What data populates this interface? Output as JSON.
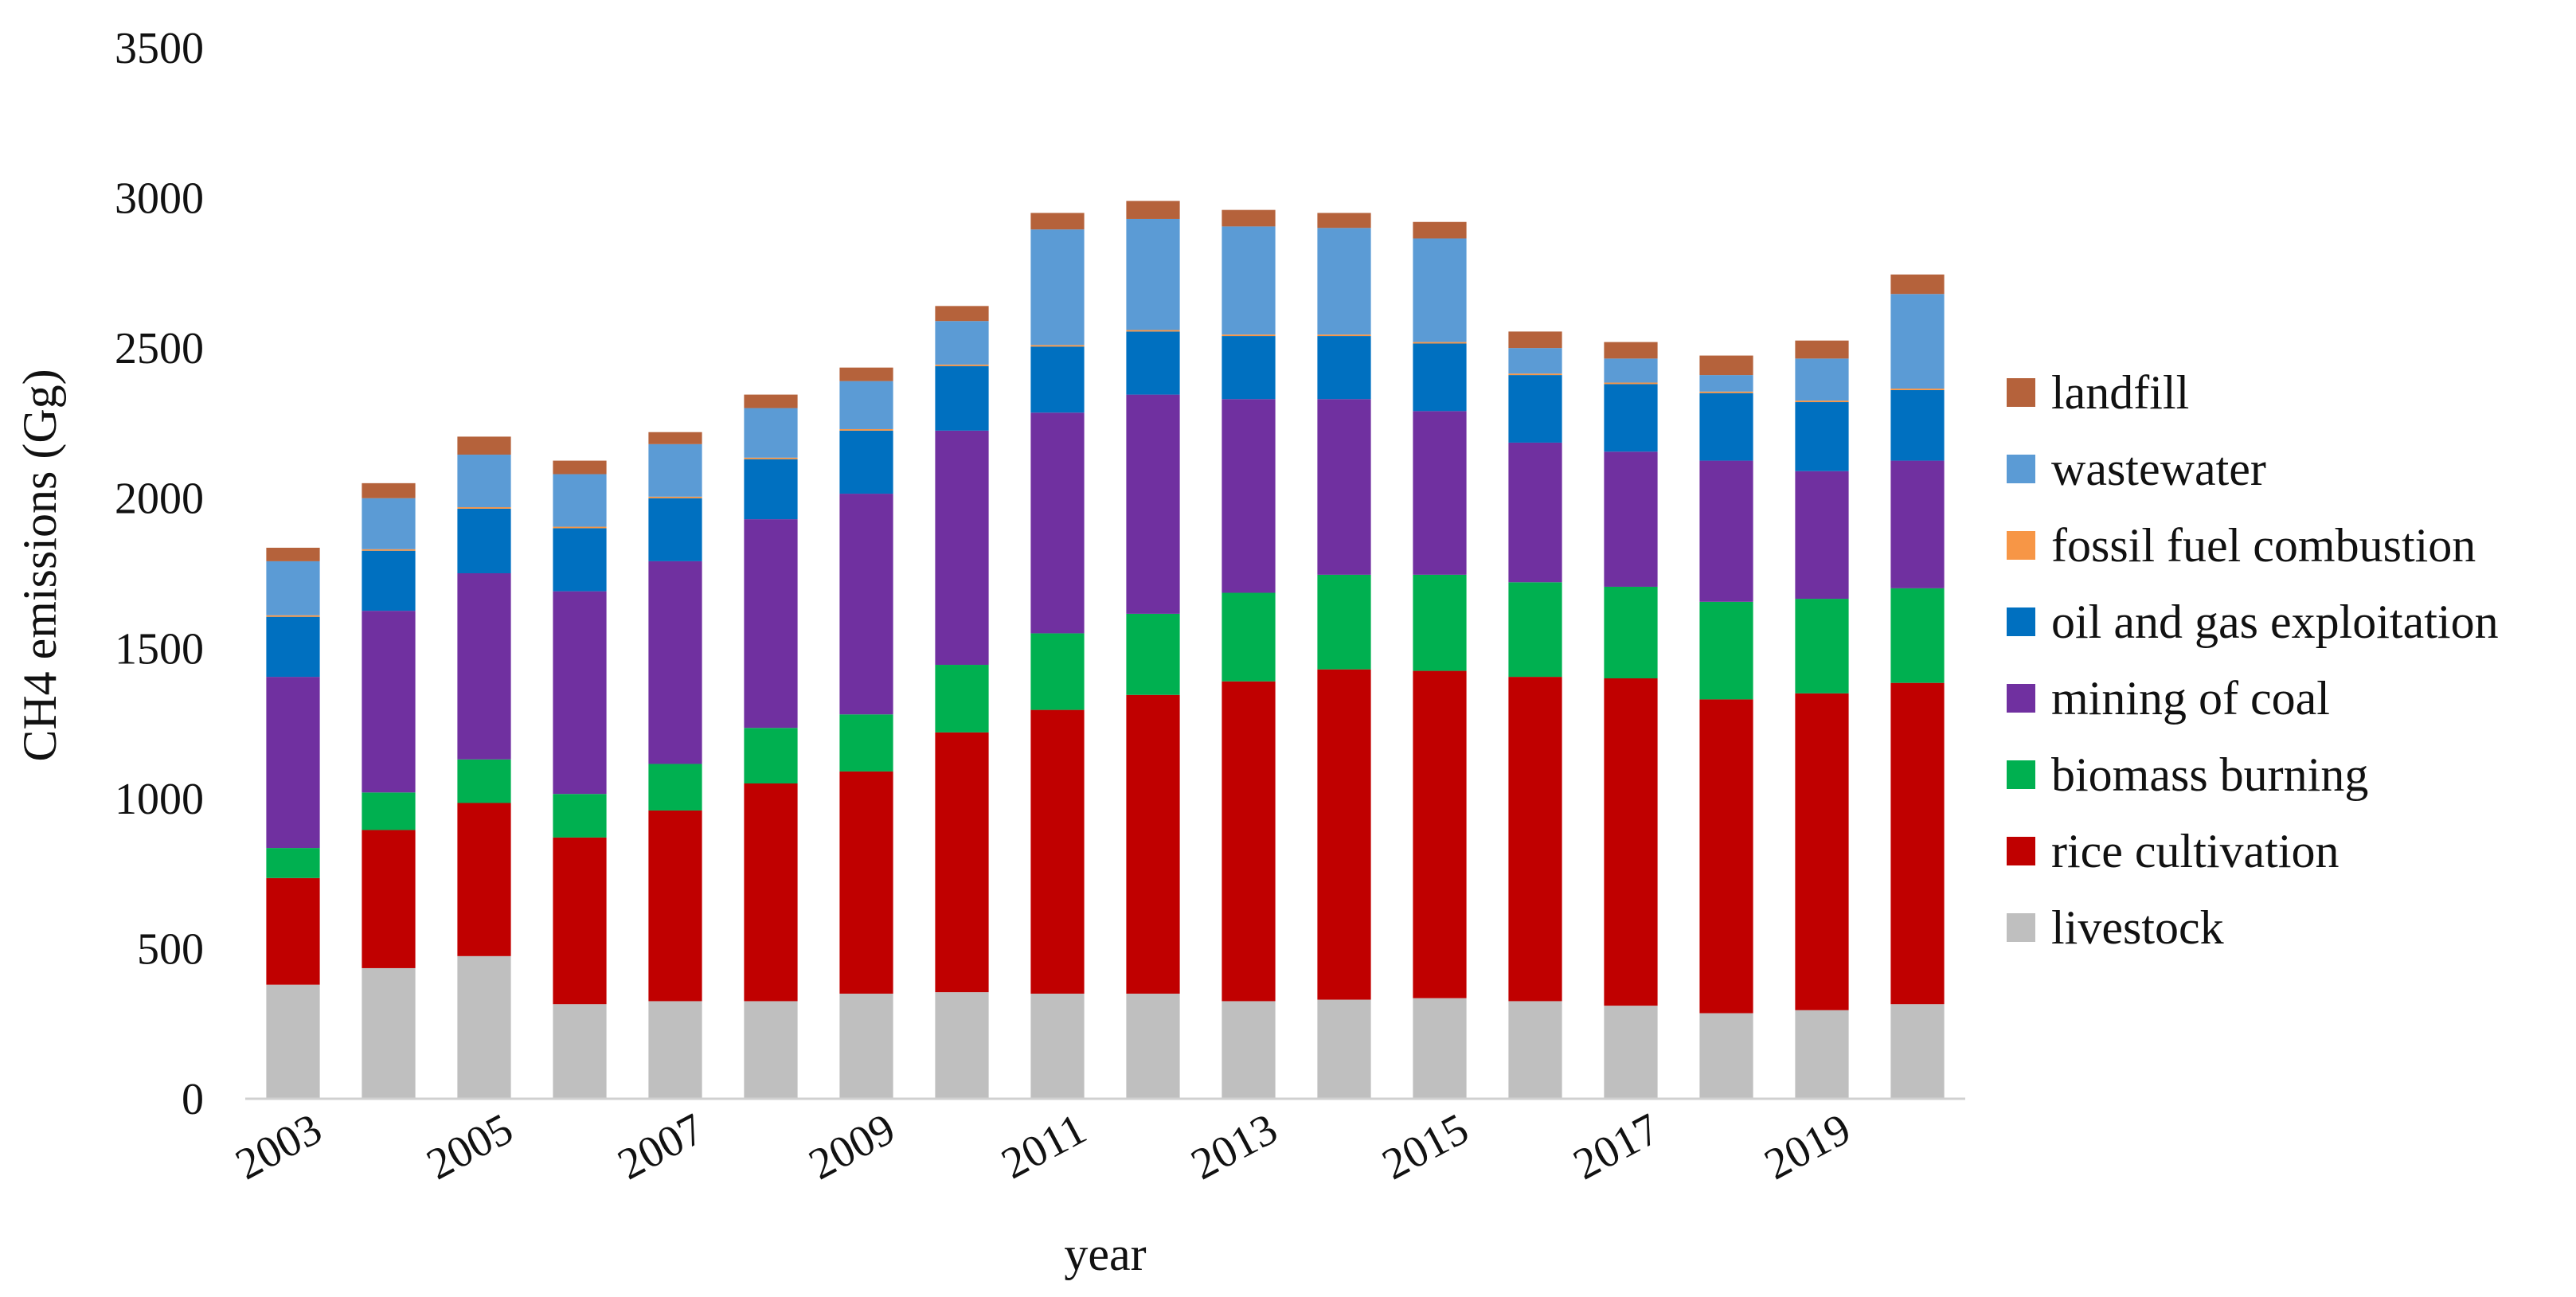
{
  "chart_data": {
    "type": "stacked-bar",
    "title": "",
    "xlabel": "year",
    "ylabel": "CH4 emissions (Gg)",
    "ylim": [
      0,
      3500
    ],
    "yticks": [
      0,
      500,
      1000,
      1500,
      2000,
      2500,
      3000,
      3500
    ],
    "grid": false,
    "legend_position": "right",
    "categories": [
      "2003",
      "2004",
      "2005",
      "2006",
      "2007",
      "2008",
      "2009",
      "2010",
      "2011",
      "2012",
      "2013",
      "2014",
      "2015",
      "2016",
      "2017",
      "2018",
      "2019",
      "2020"
    ],
    "x_tick_labels": [
      "2003",
      "",
      "2005",
      "",
      "2007",
      "",
      "2009",
      "",
      "2011",
      "",
      "2013",
      "",
      "2015",
      "",
      "2017",
      "",
      "2019",
      ""
    ],
    "series": [
      {
        "name": "livestock",
        "color": "#BFBFBF",
        "values": [
          380,
          435,
          475,
          315,
          325,
          325,
          350,
          355,
          350,
          350,
          325,
          330,
          335,
          325,
          310,
          285,
          295,
          315
        ]
      },
      {
        "name": "rice cultivation",
        "color": "#C00000",
        "values": [
          355,
          460,
          510,
          555,
          635,
          725,
          740,
          865,
          945,
          995,
          1065,
          1100,
          1090,
          1080,
          1090,
          1045,
          1055,
          1070
        ]
      },
      {
        "name": "biomass burning",
        "color": "#00B050",
        "values": [
          100,
          125,
          145,
          145,
          155,
          185,
          190,
          225,
          255,
          270,
          295,
          315,
          320,
          315,
          305,
          325,
          315,
          315
        ]
      },
      {
        "name": "mining of coal",
        "color": "#7030A0",
        "values": [
          570,
          605,
          620,
          675,
          675,
          695,
          735,
          780,
          735,
          730,
          645,
          585,
          545,
          465,
          450,
          470,
          425,
          425
        ]
      },
      {
        "name": "oil and gas exploitation",
        "color": "#0070C0",
        "values": [
          200,
          200,
          215,
          210,
          210,
          200,
          210,
          215,
          220,
          210,
          210,
          210,
          225,
          225,
          225,
          225,
          230,
          235
        ]
      },
      {
        "name": "fossil fuel combustion",
        "color": "#F79646",
        "values": [
          5,
          5,
          5,
          5,
          5,
          5,
          5,
          5,
          5,
          5,
          5,
          5,
          5,
          5,
          5,
          5,
          5,
          5
        ]
      },
      {
        "name": "wastewater",
        "color": "#5B9BD5",
        "values": [
          180,
          170,
          175,
          175,
          175,
          165,
          160,
          145,
          385,
          370,
          360,
          355,
          345,
          85,
          80,
          55,
          140,
          315
        ]
      },
      {
        "name": "landfill",
        "color": "#B5623B",
        "values": [
          45,
          50,
          60,
          45,
          40,
          45,
          45,
          50,
          55,
          60,
          55,
          50,
          55,
          55,
          55,
          65,
          60,
          65
        ]
      }
    ],
    "legend_order": [
      "landfill",
      "wastewater",
      "fossil fuel combustion",
      "oil and gas exploitation",
      "mining of coal",
      "biomass burning",
      "rice cultivation",
      "livestock"
    ]
  }
}
